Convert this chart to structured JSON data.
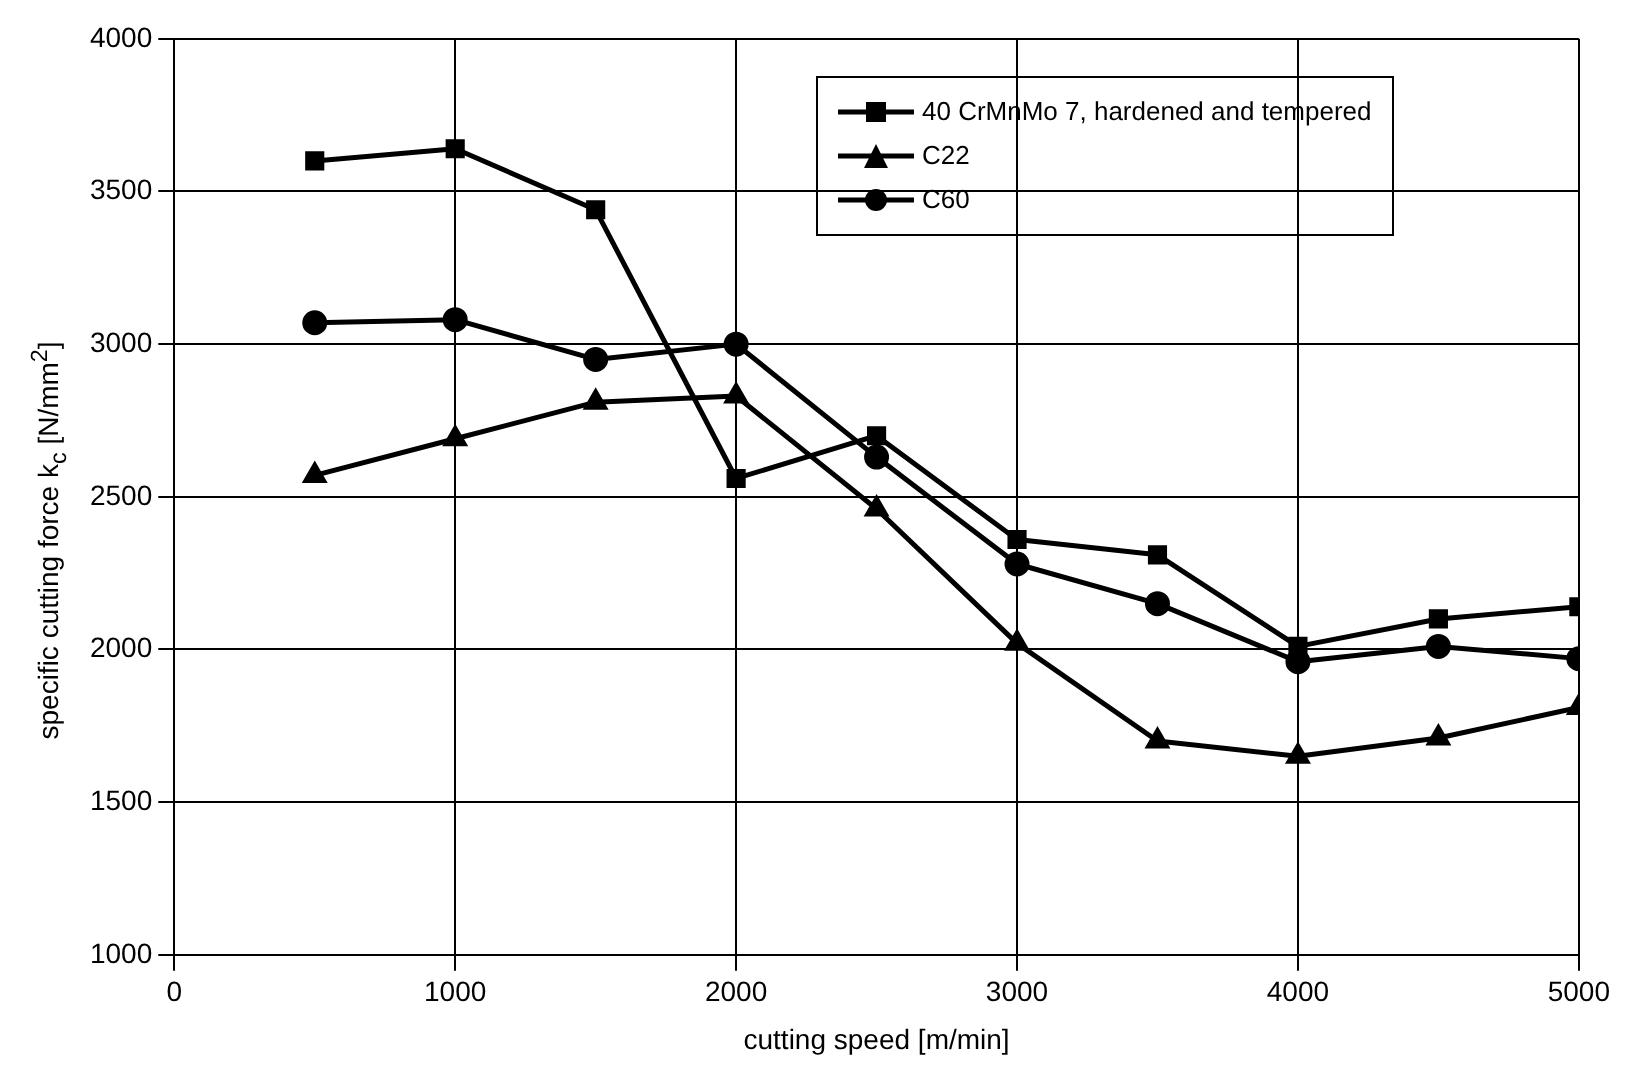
{
  "chart_data": {
    "type": "line",
    "xlabel": "cutting speed [m/min]",
    "ylabel": "specific cutting force k$_{c}$ [N/mm$^{2}$]",
    "x": [
      500,
      1000,
      1500,
      2000,
      2500,
      3000,
      3500,
      4000,
      4500,
      5000
    ],
    "series": [
      {
        "name": "40 CrMnMo 7, hardened and tempered",
        "color": "#000000",
        "marker": "square",
        "values": [
          3600,
          3640,
          3440,
          2560,
          2700,
          2360,
          2310,
          2010,
          2100,
          2140
        ]
      },
      {
        "name": "C22",
        "color": "#000000",
        "marker": "triangle",
        "values": [
          2570,
          2690,
          2810,
          2830,
          2460,
          2020,
          1700,
          1650,
          1710,
          1810
        ]
      },
      {
        "name": "C60",
        "color": "#000000",
        "marker": "circle",
        "values": [
          3070,
          3080,
          2950,
          3000,
          2630,
          2280,
          2150,
          1960,
          2010,
          1970
        ]
      }
    ],
    "xlim": [
      0,
      5000
    ],
    "xticks": [
      0,
      1000,
      2000,
      3000,
      4000,
      5000
    ],
    "ylim": [
      1000,
      4000
    ],
    "yticks": [
      1000,
      1500,
      2000,
      2500,
      3000,
      3500,
      4000
    ],
    "grid": true,
    "legend": "top right",
    "line_style": "solid"
  }
}
